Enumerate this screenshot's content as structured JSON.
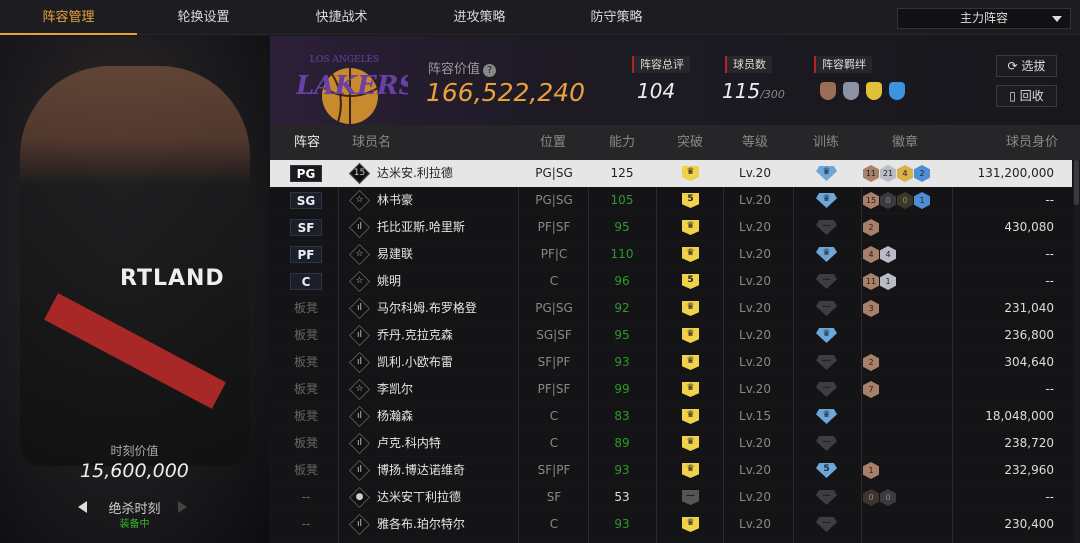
{
  "tabs": [
    "阵容管理",
    "轮换设置",
    "快捷战术",
    "进攻策略",
    "防守策略"
  ],
  "lineup_select": "主力阵容",
  "left_panel": {
    "moment_value_label": "时刻价值",
    "moment_value": "15,600,000",
    "moment_name": "绝杀时刻",
    "moment_status": "装备中",
    "jersey_text": "RTLAND"
  },
  "header": {
    "team_logo": "LOS ANGELES LAKERS",
    "value_label": "阵容价值",
    "help_icon": "?",
    "value": "166,522,240",
    "rating_label": "阵容总评",
    "rating": "104",
    "count_label": "球员数",
    "count": "115",
    "count_max": "/300",
    "bond_label": "阵容羁绊",
    "draft_button": "选拔",
    "recycle_button": "回收"
  },
  "colors": {
    "accent": "#e9a23b",
    "green": "#2f9a2a",
    "bronze": "#a8806a",
    "silver": "#b9bcc6",
    "gold": "#d9b14a",
    "blue": "#4c8fd6",
    "training": "#6ea6d8",
    "break": "#f0d24a"
  },
  "columns": [
    "阵容",
    "球员名",
    "位置",
    "能力",
    "突破",
    "等级",
    "训练",
    "徽章",
    "球员身价"
  ],
  "rows": [
    {
      "slot": "PG",
      "icon": "15",
      "name": "达米安.利拉德",
      "pos": "PG|SG",
      "ability": "125",
      "brk": "crown",
      "lvl": "Lv.20",
      "trn": "crown",
      "badges": [
        [
          "bronze",
          "11"
        ],
        [
          "silver",
          "21"
        ],
        [
          "gold",
          "4"
        ],
        [
          "blue",
          "2"
        ]
      ],
      "price": "131,200,000"
    },
    {
      "slot": "SG",
      "icon": "☆",
      "name": "林书豪",
      "pos": "PG|SG",
      "ability": "105",
      "brk": "5",
      "lvl": "Lv.20",
      "trn": "crown",
      "badges": [
        [
          "bronze",
          "15"
        ],
        [
          "silver-dim",
          "0"
        ],
        [
          "gold-dim",
          "0"
        ],
        [
          "blue",
          "1"
        ]
      ],
      "price": "--"
    },
    {
      "slot": "SF",
      "icon": "ıl",
      "name": "托比亚斯.哈里斯",
      "pos": "PF|SF",
      "ability": "95",
      "brk": "crown",
      "lvl": "Lv.20",
      "trn": "grey",
      "badges": [
        [
          "bronze",
          "2"
        ]
      ],
      "price": "430,080"
    },
    {
      "slot": "PF",
      "icon": "☆",
      "name": "易建联",
      "pos": "PF|C",
      "ability": "110",
      "brk": "crown",
      "lvl": "Lv.20",
      "trn": "crown",
      "badges": [
        [
          "bronze",
          "4"
        ],
        [
          "silver",
          "4"
        ]
      ],
      "price": "--"
    },
    {
      "slot": "C",
      "icon": "☆",
      "name": "姚明",
      "pos": "C",
      "ability": "96",
      "brk": "5",
      "lvl": "Lv.20",
      "trn": "grey",
      "badges": [
        [
          "bronze",
          "11"
        ],
        [
          "silver",
          "1"
        ]
      ],
      "price": "--"
    },
    {
      "slot": "板凳",
      "icon": "ıl",
      "name": "马尔科姆.布罗格登",
      "pos": "PG|SG",
      "ability": "92",
      "brk": "crown",
      "lvl": "Lv.20",
      "trn": "grey",
      "badges": [
        [
          "bronze",
          "3"
        ]
      ],
      "price": "231,040"
    },
    {
      "slot": "板凳",
      "icon": "ıl",
      "name": "乔丹.克拉克森",
      "pos": "SG|SF",
      "ability": "95",
      "brk": "crown",
      "lvl": "Lv.20",
      "trn": "crown",
      "badges": [],
      "price": "236,800"
    },
    {
      "slot": "板凳",
      "icon": "ıl",
      "name": "凯利.小欧布雷",
      "pos": "SF|PF",
      "ability": "93",
      "brk": "crown",
      "lvl": "Lv.20",
      "trn": "grey",
      "badges": [
        [
          "bronze",
          "2"
        ]
      ],
      "price": "304,640"
    },
    {
      "slot": "板凳",
      "icon": "☆",
      "name": "李凯尔",
      "pos": "PF|SF",
      "ability": "99",
      "brk": "crown",
      "lvl": "Lv.20",
      "trn": "grey",
      "badges": [
        [
          "bronze",
          "7"
        ]
      ],
      "price": "--"
    },
    {
      "slot": "板凳",
      "icon": "ıl",
      "name": "杨瀚森",
      "pos": "C",
      "ability": "83",
      "brk": "crown",
      "lvl": "Lv.15",
      "trn": "crown",
      "badges": [],
      "price": "18,048,000"
    },
    {
      "slot": "板凳",
      "icon": "ıl",
      "name": "卢克.科内特",
      "pos": "C",
      "ability": "89",
      "brk": "crown",
      "lvl": "Lv.20",
      "trn": "grey",
      "badges": [],
      "price": "238,720"
    },
    {
      "slot": "板凳",
      "icon": "ıl",
      "name": "博扬.博达诺维奇",
      "pos": "SF|PF",
      "ability": "93",
      "brk": "crown",
      "lvl": "Lv.20",
      "trn": "5",
      "badges": [
        [
          "bronze",
          "1"
        ]
      ],
      "price": "232,960"
    },
    {
      "slot": "--",
      "icon": "●",
      "name": "达米安丅利拉德",
      "pos": "SF",
      "ability": "53",
      "brk": "grey",
      "lvl": "Lv.20",
      "trn": "grey",
      "badges": [
        [
          "bronze-dim",
          "0"
        ],
        [
          "silver-dim",
          "0"
        ]
      ],
      "price": "--"
    },
    {
      "slot": "--",
      "icon": "ıl",
      "name": "雅各布.珀尔特尔",
      "pos": "C",
      "ability": "93",
      "brk": "crown",
      "lvl": "Lv.20",
      "trn": "grey",
      "badges": [],
      "price": "230,400"
    }
  ]
}
